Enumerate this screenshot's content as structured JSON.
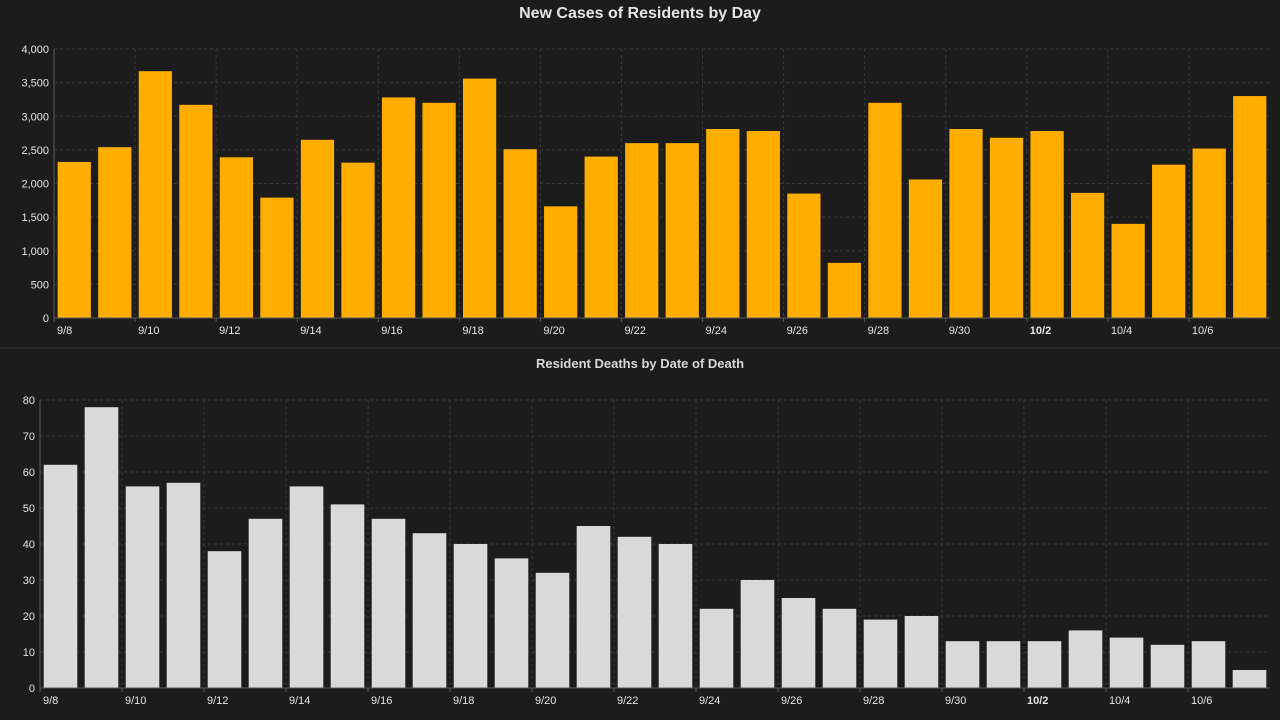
{
  "colors": {
    "background": "#1c1c1c",
    "cases_bar": "#ffae00",
    "deaths_bar": "#d9d9d9",
    "grid": "#3a3a3a",
    "axis": "#5a5a5a",
    "text": "#e6e6e6"
  },
  "chart_data": [
    {
      "type": "bar",
      "title": "New Cases of Residents by Day",
      "xlabel": "",
      "ylabel": "",
      "categories": [
        "9/8",
        "9/9",
        "9/10",
        "9/11",
        "9/12",
        "9/13",
        "9/14",
        "9/15",
        "9/16",
        "9/17",
        "9/18",
        "9/19",
        "9/20",
        "9/21",
        "9/22",
        "9/23",
        "9/24",
        "9/25",
        "9/26",
        "9/27",
        "9/28",
        "9/29",
        "9/30",
        "10/1",
        "10/2",
        "10/3",
        "10/4",
        "10/5",
        "10/6",
        "10/7"
      ],
      "x_tick_labels": [
        "9/8",
        "9/10",
        "9/12",
        "9/14",
        "9/16",
        "9/18",
        "9/20",
        "9/22",
        "9/24",
        "9/26",
        "9/28",
        "9/30",
        "10/2",
        "10/4",
        "10/6"
      ],
      "bold_tick": "10/2",
      "values": [
        2320,
        2540,
        3670,
        3170,
        2390,
        1790,
        2650,
        2310,
        3280,
        3200,
        3560,
        2510,
        1660,
        2400,
        2600,
        2600,
        2810,
        2780,
        1850,
        820,
        3200,
        2060,
        2810,
        2680,
        2780,
        1860,
        1400,
        2280,
        2520,
        3300
      ],
      "ylim": [
        0,
        4000
      ],
      "y_ticks": [
        0,
        500,
        1000,
        1500,
        2000,
        2500,
        3000,
        3500,
        4000
      ],
      "y_tick_labels": [
        "0",
        "500",
        "1,000",
        "1,500",
        "2,000",
        "2,500",
        "3,000",
        "3,500",
        "4,000"
      ],
      "grid": true
    },
    {
      "type": "bar",
      "title": "Resident Deaths by Date of Death",
      "xlabel": "",
      "ylabel": "",
      "categories": [
        "9/8",
        "9/9",
        "9/10",
        "9/11",
        "9/12",
        "9/13",
        "9/14",
        "9/15",
        "9/16",
        "9/17",
        "9/18",
        "9/19",
        "9/20",
        "9/21",
        "9/22",
        "9/23",
        "9/24",
        "9/25",
        "9/26",
        "9/27",
        "9/28",
        "9/29",
        "9/30",
        "10/1",
        "10/2",
        "10/3",
        "10/4",
        "10/5",
        "10/6",
        "10/7"
      ],
      "x_tick_labels": [
        "9/8",
        "9/10",
        "9/12",
        "9/14",
        "9/16",
        "9/18",
        "9/20",
        "9/22",
        "9/24",
        "9/26",
        "9/28",
        "9/30",
        "10/2",
        "10/4",
        "10/6"
      ],
      "bold_tick": "10/2",
      "values": [
        62,
        78,
        56,
        57,
        38,
        47,
        56,
        51,
        47,
        43,
        40,
        36,
        32,
        45,
        42,
        40,
        22,
        30,
        25,
        22,
        19,
        20,
        13,
        13,
        13,
        16,
        14,
        12,
        13,
        5
      ],
      "ylim": [
        0,
        80
      ],
      "y_ticks": [
        0,
        10,
        20,
        30,
        40,
        50,
        60,
        70,
        80
      ],
      "y_tick_labels": [
        "0",
        "10",
        "20",
        "30",
        "40",
        "50",
        "60",
        "70",
        "80"
      ],
      "grid": true
    }
  ]
}
